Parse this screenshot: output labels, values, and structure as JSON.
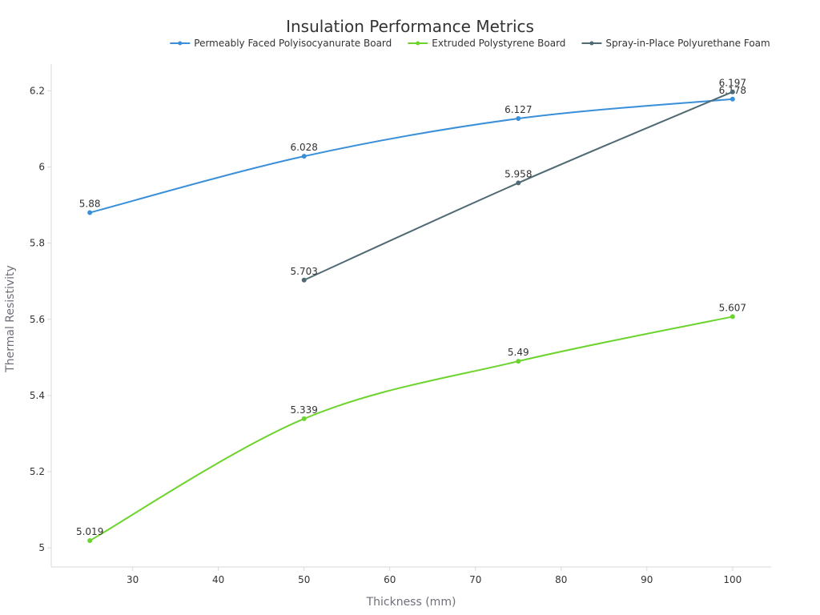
{
  "chart_data": {
    "type": "line",
    "title": "Insulation Performance Metrics",
    "xlabel": "Thickness (mm)",
    "ylabel": "Thermal Resistivity",
    "xlim": [
      20.5,
      104.5
    ],
    "ylim": [
      4.95,
      6.27
    ],
    "x_ticks": [
      30,
      40,
      50,
      60,
      70,
      80,
      90,
      100
    ],
    "y_ticks": [
      5,
      5.2,
      5.4,
      5.6,
      5.8,
      6,
      6.2
    ],
    "grid": false,
    "legend_position": "top",
    "series": [
      {
        "name": "Permeably Faced Polyisocyanurate Board",
        "color": "#3a8fd9",
        "x": [
          25,
          50,
          75,
          100
        ],
        "values": [
          5.88,
          6.028,
          6.127,
          6.178
        ],
        "labels": [
          "5.88",
          "6.028",
          "6.127",
          "6.178"
        ]
      },
      {
        "name": "Extruded Polystyrene Board",
        "color": "#6dd42e",
        "x": [
          25,
          50,
          75,
          100
        ],
        "values": [
          5.019,
          5.339,
          5.49,
          5.607
        ],
        "labels": [
          "5.019",
          "5.339",
          "5.49",
          "5.607"
        ]
      },
      {
        "name": "Spray-in-Place Polyurethane Foam",
        "color": "#4f6a73",
        "x": [
          50,
          75,
          100
        ],
        "values": [
          5.703,
          5.958,
          6.197
        ],
        "labels": [
          "5.703",
          "5.958",
          "6.197"
        ]
      }
    ]
  }
}
